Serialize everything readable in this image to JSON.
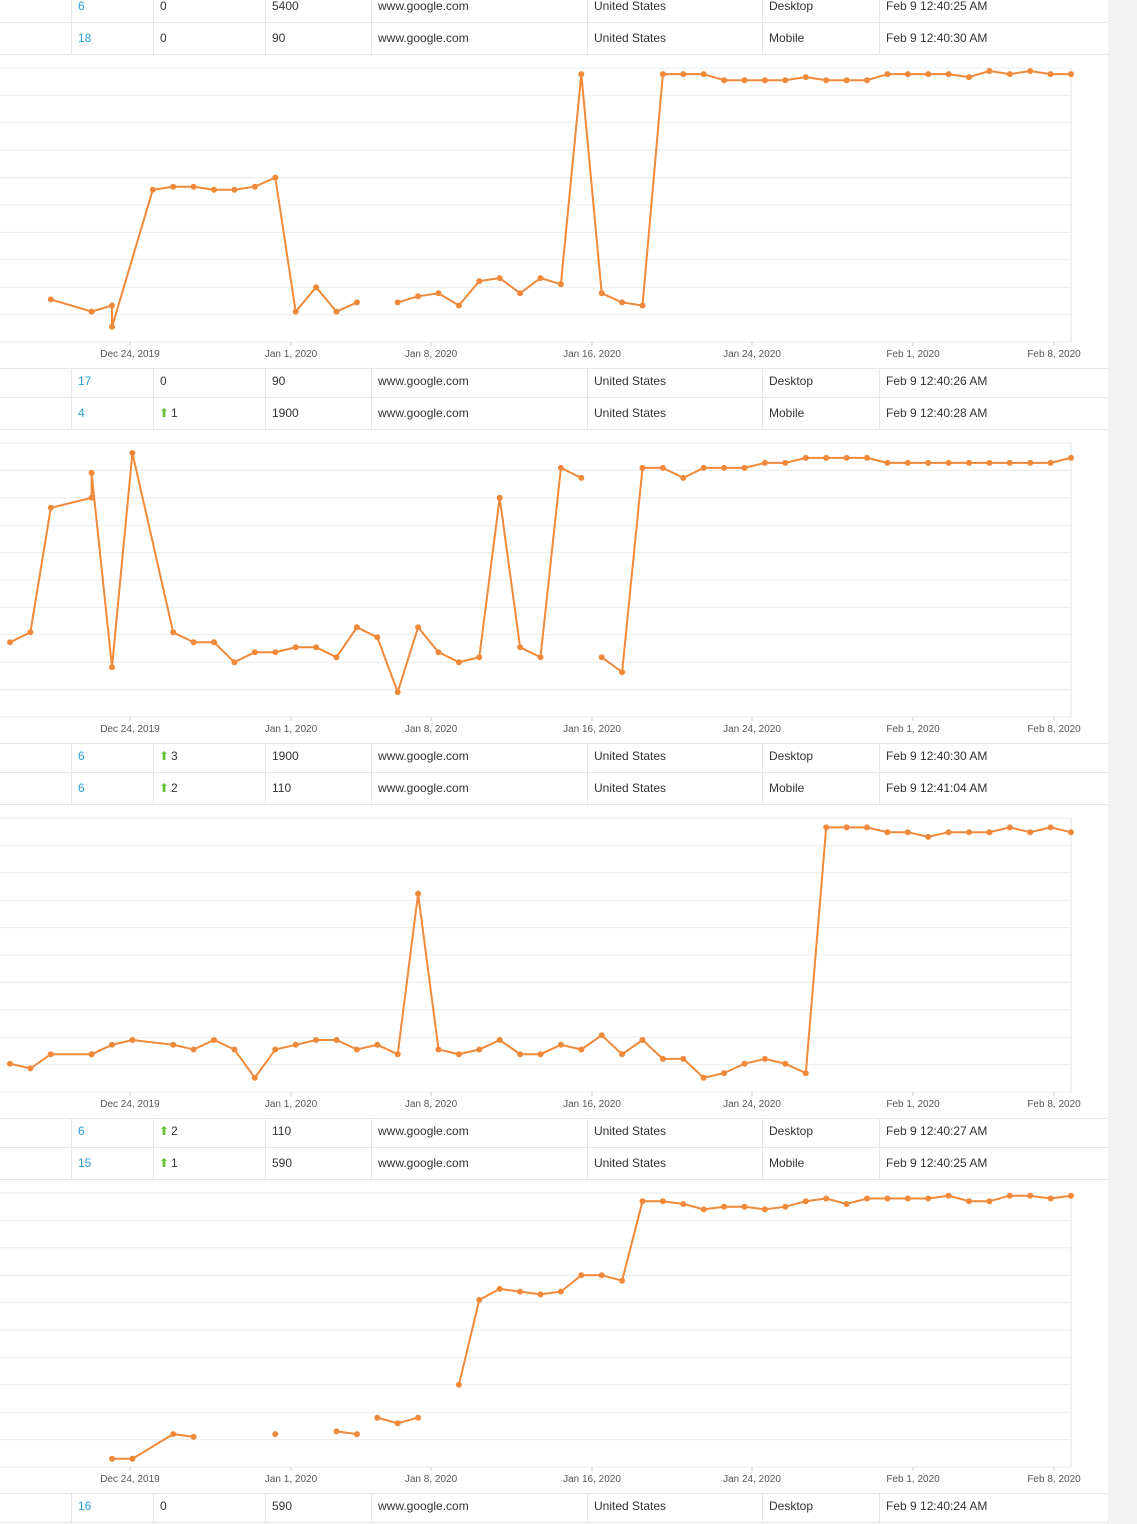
{
  "colors": {
    "line": "#f0893a",
    "link": "#2a9fd6",
    "up": "#6abf3b",
    "grid": "#ececec"
  },
  "icons": {
    "up": "arrow-up-icon"
  },
  "rows": [
    {
      "position": "6",
      "change": "0",
      "change_dir": "none",
      "volume": "5400",
      "engine": "www.google.com",
      "location": "United States",
      "device": "Desktop",
      "time": "Feb 9 12:40:25 AM"
    },
    {
      "position": "18",
      "change": "0",
      "change_dir": "none",
      "volume": "90",
      "engine": "www.google.com",
      "location": "United States",
      "device": "Mobile",
      "time": "Feb 9 12:40:30 AM"
    },
    {
      "position": "17",
      "change": "0",
      "change_dir": "none",
      "volume": "90",
      "engine": "www.google.com",
      "location": "United States",
      "device": "Desktop",
      "time": "Feb 9 12:40:26 AM"
    },
    {
      "position": "4",
      "change": "1",
      "change_dir": "up",
      "volume": "1900",
      "engine": "www.google.com",
      "location": "United States",
      "device": "Mobile",
      "time": "Feb 9 12:40:28 AM"
    },
    {
      "position": "6",
      "change": "3",
      "change_dir": "up",
      "volume": "1900",
      "engine": "www.google.com",
      "location": "United States",
      "device": "Desktop",
      "time": "Feb 9 12:40:30 AM"
    },
    {
      "position": "6",
      "change": "2",
      "change_dir": "up",
      "volume": "110",
      "engine": "www.google.com",
      "location": "United States",
      "device": "Mobile",
      "time": "Feb 9 12:41:04 AM"
    },
    {
      "position": "6",
      "change": "2",
      "change_dir": "up",
      "volume": "110",
      "engine": "www.google.com",
      "location": "United States",
      "device": "Desktop",
      "time": "Feb 9 12:40:27 AM"
    },
    {
      "position": "15",
      "change": "1",
      "change_dir": "up",
      "volume": "590",
      "engine": "www.google.com",
      "location": "United States",
      "device": "Mobile",
      "time": "Feb 9 12:40:25 AM"
    },
    {
      "position": "16",
      "change": "0",
      "change_dir": "none",
      "volume": "590",
      "engine": "www.google.com",
      "location": "United States",
      "device": "Desktop",
      "time": "Feb 9 12:40:24 AM"
    }
  ],
  "chart_data": [
    {
      "type": "line",
      "x_ticks": [
        "Dec 24, 2019",
        "Jan 1, 2020",
        "Jan 8, 2020",
        "Jan 16, 2020",
        "Jan 24, 2020",
        "Feb 1, 2020",
        "Feb 8, 2020"
      ],
      "x_range": [
        "2019-12-18",
        "2020-02-08"
      ],
      "grid": true,
      "series": [
        {
          "x": [
            "2019-12-20",
            "2019-12-22",
            "2019-12-23",
            "2019-12-23",
            "2019-12-25",
            "2019-12-26",
            "2019-12-27",
            "2019-12-28",
            "2019-12-29",
            "2019-12-30",
            "2019-12-31",
            "2020-01-01",
            "2020-01-02",
            "2020-01-03",
            "2020-01-04"
          ],
          "y": [
            76,
            80,
            78,
            85,
            40,
            39,
            39,
            40,
            40,
            39,
            36,
            80,
            72,
            80,
            77
          ]
        },
        {
          "x": [
            "2020-01-06",
            "2020-01-07",
            "2020-01-08",
            "2020-01-09",
            "2020-01-10",
            "2020-01-11",
            "2020-01-12",
            "2020-01-13",
            "2020-01-14",
            "2020-01-15",
            "2020-01-16",
            "2020-01-17",
            "2020-01-18",
            "2020-01-19",
            "2020-01-20",
            "2020-01-21",
            "2020-01-22",
            "2020-01-23",
            "2020-01-24",
            "2020-01-25",
            "2020-01-26",
            "2020-01-27",
            "2020-01-28",
            "2020-01-29",
            "2020-01-30",
            "2020-01-31",
            "2020-02-01",
            "2020-02-02",
            "2020-02-03",
            "2020-02-04",
            "2020-02-05",
            "2020-02-06",
            "2020-02-07",
            "2020-02-08"
          ],
          "y": [
            77,
            75,
            74,
            78,
            70,
            69,
            74,
            69,
            71,
            2,
            74,
            77,
            78,
            2,
            2,
            2,
            4,
            4,
            4,
            4,
            3,
            4,
            4,
            4,
            2,
            2,
            2,
            2,
            3,
            1,
            2,
            1,
            2,
            2
          ]
        }
      ]
    },
    {
      "type": "line",
      "x_ticks": [
        "Dec 24, 2019",
        "Jan 1, 2020",
        "Jan 8, 2020",
        "Jan 16, 2020",
        "Jan 24, 2020",
        "Feb 1, 2020",
        "Feb 8, 2020"
      ],
      "x_range": [
        "2019-12-18",
        "2020-02-08"
      ],
      "grid": true,
      "series": [
        {
          "x": [
            "2019-12-18",
            "2019-12-19",
            "2019-12-20",
            "2019-12-22",
            "2019-12-22",
            "2019-12-23",
            "2019-12-24",
            "2019-12-26",
            "2019-12-27",
            "2019-12-28",
            "2019-12-29",
            "2019-12-30",
            "2019-12-31",
            "2020-01-01",
            "2020-01-02",
            "2020-01-03",
            "2020-01-04",
            "2020-01-05",
            "2020-01-06",
            "2020-01-07",
            "2020-01-08",
            "2020-01-09",
            "2020-01-10",
            "2020-01-11",
            "2020-01-12",
            "2020-01-13",
            "2020-01-14",
            "2020-01-15"
          ],
          "y": [
            40,
            38,
            13,
            11,
            6,
            45,
            2,
            38,
            40,
            40,
            44,
            42,
            42,
            41,
            41,
            43,
            37,
            39,
            50,
            37,
            42,
            44,
            43,
            11,
            41,
            43,
            5,
            7
          ]
        },
        {
          "x": [
            "2020-01-16",
            "2020-01-17",
            "2020-01-18",
            "2020-01-19",
            "2020-01-20",
            "2020-01-21",
            "2020-01-22",
            "2020-01-23",
            "2020-01-24",
            "2020-01-25",
            "2020-01-26",
            "2020-01-27",
            "2020-01-28",
            "2020-01-29",
            "2020-01-30",
            "2020-01-31",
            "2020-02-01",
            "2020-02-02",
            "2020-02-03",
            "2020-02-04",
            "2020-02-05",
            "2020-02-06",
            "2020-02-07",
            "2020-02-08"
          ],
          "y": [
            43,
            46,
            5,
            5,
            7,
            5,
            5,
            5,
            4,
            4,
            3,
            3,
            3,
            3,
            4,
            4,
            4,
            4,
            4,
            4,
            4,
            4,
            4,
            3
          ]
        }
      ]
    },
    {
      "type": "line",
      "x_ticks": [
        "Dec 24, 2019",
        "Jan 1, 2020",
        "Jan 8, 2020",
        "Jan 16, 2020",
        "Jan 24, 2020",
        "Feb 1, 2020",
        "Feb 8, 2020"
      ],
      "x_range": [
        "2019-12-18",
        "2020-02-08"
      ],
      "grid": true,
      "series": [
        {
          "x": [
            "2019-12-18",
            "2019-12-19",
            "2019-12-20",
            "2019-12-22",
            "2019-12-22",
            "2019-12-23",
            "2019-12-24",
            "2019-12-26",
            "2019-12-27",
            "2019-12-28",
            "2019-12-29",
            "2019-12-30",
            "2019-12-31",
            "2020-01-01",
            "2020-01-02",
            "2020-01-03",
            "2020-01-04",
            "2020-01-05",
            "2020-01-06",
            "2020-01-07",
            "2020-01-08",
            "2020-01-09",
            "2020-01-10",
            "2020-01-11",
            "2020-01-12",
            "2020-01-13",
            "2020-01-14",
            "2020-01-15",
            "2020-01-16",
            "2020-01-17",
            "2020-01-18",
            "2020-01-19",
            "2020-01-20",
            "2020-01-21",
            "2020-01-22",
            "2020-01-23",
            "2020-01-24",
            "2020-01-25",
            "2020-01-26",
            "2020-01-27",
            "2020-01-28",
            "2020-01-29",
            "2020-01-30",
            "2020-01-31",
            "2020-02-01",
            "2020-02-02",
            "2020-02-03",
            "2020-02-04",
            "2020-02-05",
            "2020-02-06",
            "2020-02-07",
            "2020-02-08"
          ],
          "y": [
            52,
            53,
            50,
            50,
            50,
            48,
            47,
            48,
            49,
            47,
            49,
            55,
            49,
            48,
            47,
            47,
            49,
            48,
            50,
            16,
            49,
            50,
            49,
            47,
            50,
            50,
            48,
            49,
            46,
            50,
            47,
            51,
            51,
            55,
            54,
            52,
            51,
            52,
            54,
            2,
            2,
            2,
            3,
            3,
            4,
            3,
            3,
            3,
            2,
            3,
            2,
            3
          ]
        }
      ]
    },
    {
      "type": "line",
      "x_ticks": [
        "Dec 24, 2019",
        "Jan 1, 2020",
        "Jan 8, 2020",
        "Jan 16, 2020",
        "Jan 24, 2020",
        "Feb 1, 2020",
        "Feb 8, 2020"
      ],
      "x_range": [
        "2019-12-18",
        "2020-02-08"
      ],
      "grid": true,
      "series": [
        {
          "x": [
            "2019-12-23",
            "2019-12-24"
          ],
          "y": [
            97,
            97
          ]
        },
        {
          "x": [
            "2019-12-24",
            "2019-12-26",
            "2019-12-27"
          ],
          "y": [
            97,
            88,
            89
          ]
        },
        {
          "x": [
            "2019-12-31"
          ],
          "y": [
            88
          ]
        },
        {
          "x": [
            "2020-01-03",
            "2020-01-04"
          ],
          "y": [
            87,
            88
          ]
        },
        {
          "x": [
            "2020-01-05",
            "2020-01-06",
            "2020-01-07"
          ],
          "y": [
            82,
            84,
            82
          ]
        },
        {
          "x": [
            "2020-01-09",
            "2020-01-10",
            "2020-01-11",
            "2020-01-12",
            "2020-01-13",
            "2020-01-14",
            "2020-01-15",
            "2020-01-16",
            "2020-01-17",
            "2020-01-18",
            "2020-01-19",
            "2020-01-20",
            "2020-01-21",
            "2020-01-22",
            "2020-01-23",
            "2020-01-24",
            "2020-01-25",
            "2020-01-26",
            "2020-01-27",
            "2020-01-28",
            "2020-01-29",
            "2020-01-30",
            "2020-01-31",
            "2020-02-01",
            "2020-02-02",
            "2020-02-03",
            "2020-02-04",
            "2020-02-05",
            "2020-02-06",
            "2020-02-07",
            "2020-02-08"
          ],
          "y": [
            70,
            39,
            35,
            36,
            37,
            36,
            30,
            30,
            32,
            3,
            3,
            4,
            6,
            5,
            5,
            6,
            5,
            3,
            2,
            4,
            2,
            2,
            2,
            2,
            1,
            3,
            3,
            1,
            1,
            2,
            1
          ]
        }
      ]
    }
  ]
}
